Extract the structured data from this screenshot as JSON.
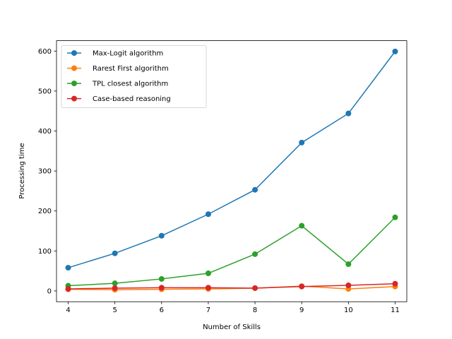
{
  "chart_data": {
    "type": "line",
    "title": "",
    "xlabel": "Number of Skills",
    "ylabel": "Processing time",
    "x": [
      4,
      5,
      6,
      7,
      8,
      9,
      10,
      11
    ],
    "xlim": [
      3.75,
      11.25
    ],
    "ylim": [
      -27,
      626
    ],
    "xticks": [
      4,
      5,
      6,
      7,
      8,
      9,
      10,
      11
    ],
    "yticks": [
      0,
      100,
      200,
      300,
      400,
      500,
      600
    ],
    "grid": false,
    "legend_position": "top-left",
    "series": [
      {
        "name": "Max-Logit algorithm",
        "color": "#1f77b4",
        "values": [
          58,
          94,
          138,
          192,
          253,
          371,
          444,
          599
        ]
      },
      {
        "name": "Rarest First algorithm",
        "color": "#ff7f0e",
        "values": [
          4,
          3,
          4,
          5,
          7,
          12,
          5,
          11
        ]
      },
      {
        "name": "TPL closest algorithm",
        "color": "#2ca02c",
        "values": [
          13,
          19,
          30,
          44,
          92,
          163,
          67,
          184
        ]
      },
      {
        "name": "Case-based reasoning",
        "color": "#d62728",
        "values": [
          5,
          7,
          8,
          8,
          7,
          11,
          14,
          18
        ]
      }
    ]
  }
}
